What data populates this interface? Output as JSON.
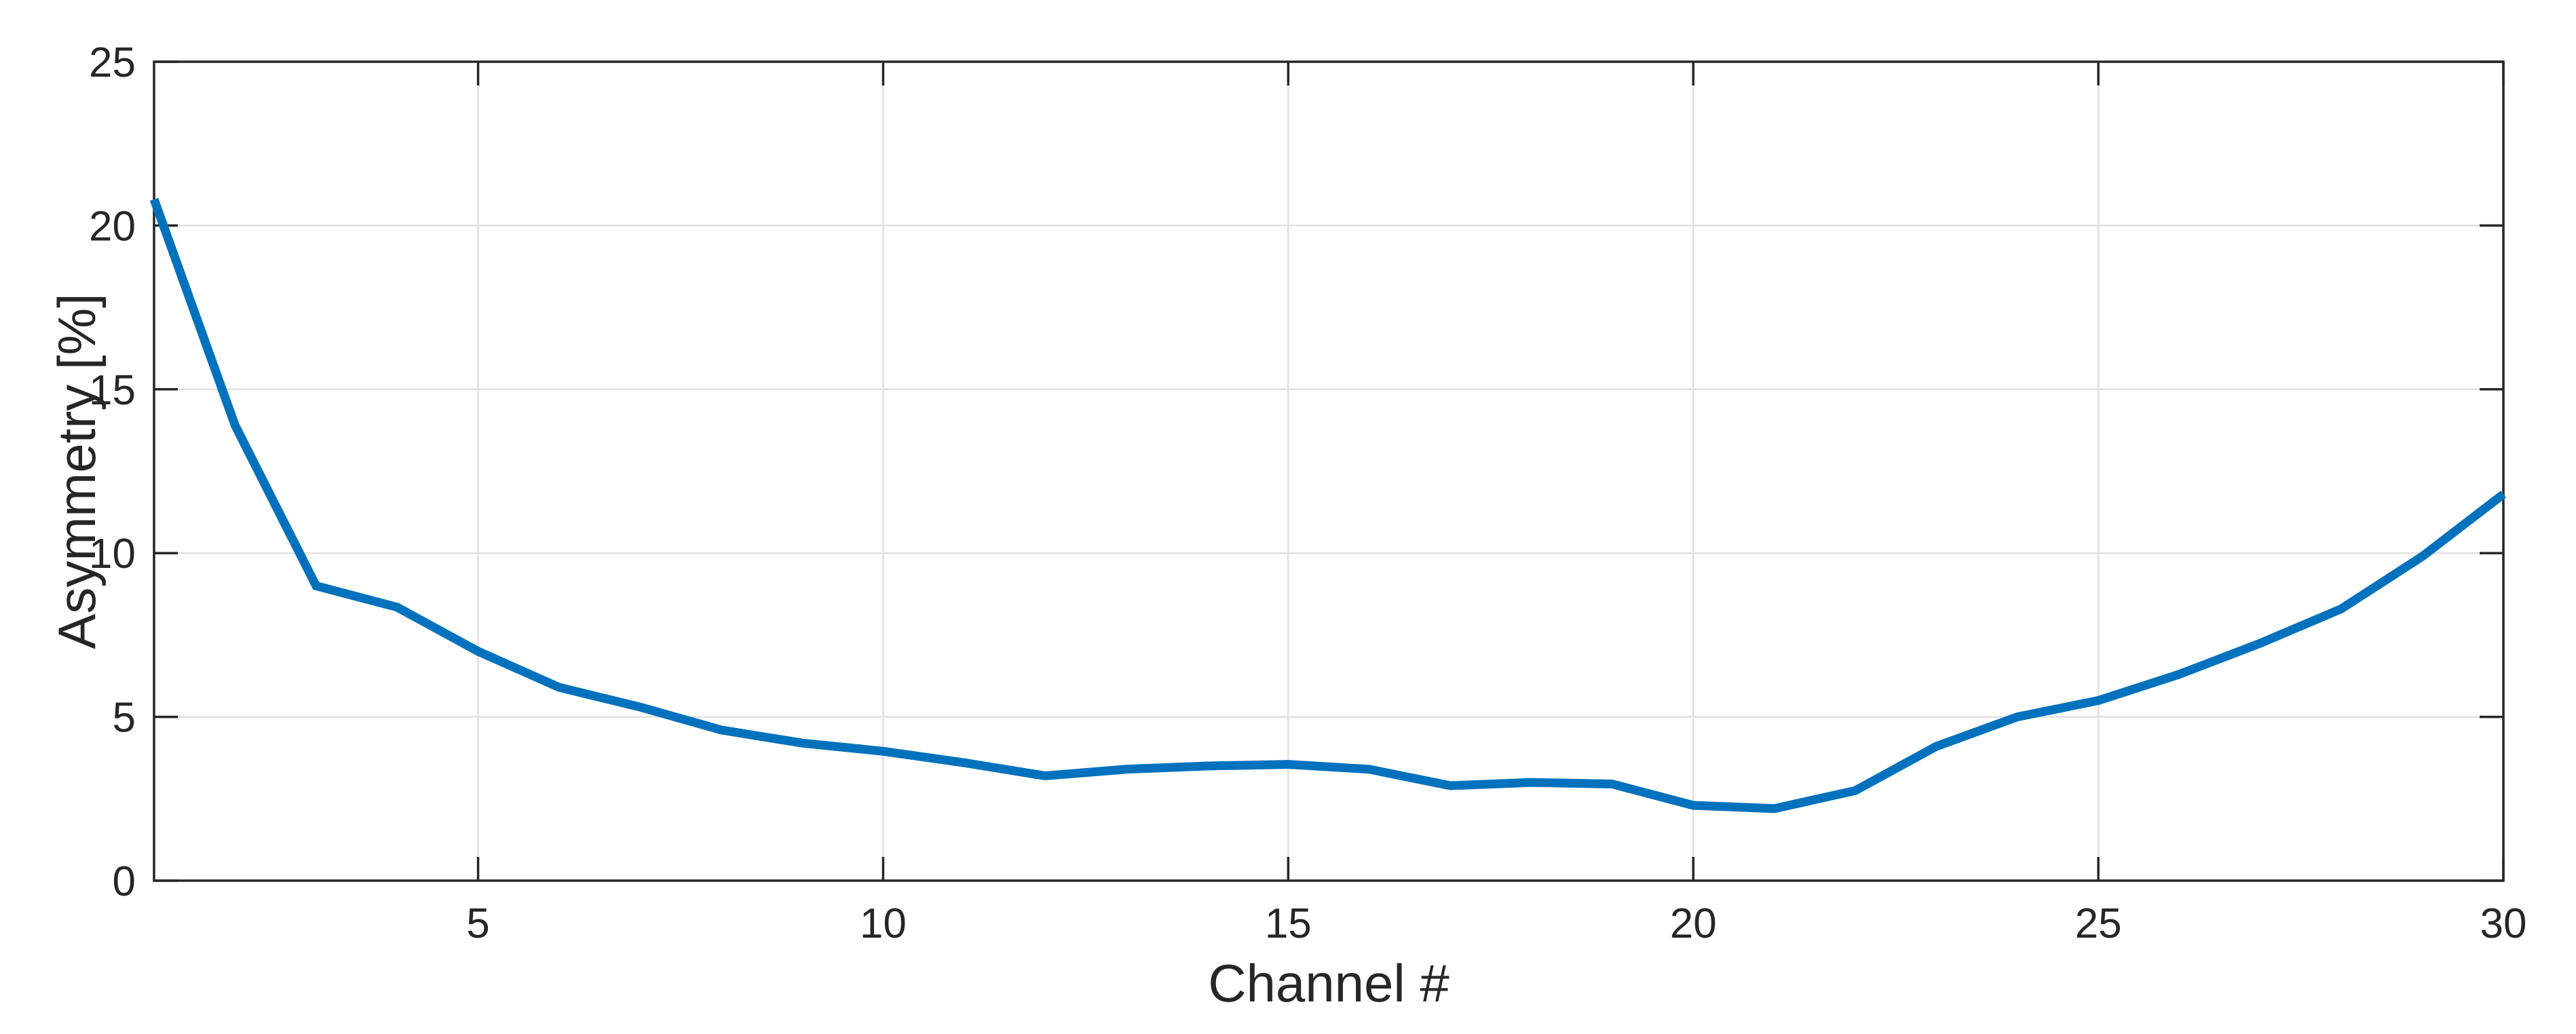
{
  "figure": {
    "background": "#ffffff"
  },
  "chart_data": {
    "type": "line",
    "title": "",
    "xlabel": "Channel #",
    "ylabel": "Asymmetry [%]",
    "x": [
      1,
      2,
      3,
      4,
      5,
      6,
      7,
      8,
      9,
      10,
      11,
      12,
      13,
      14,
      15,
      16,
      17,
      18,
      19,
      20,
      21,
      22,
      23,
      24,
      25,
      26,
      27,
      28,
      29,
      30
    ],
    "series": [
      {
        "name": "asymmetry",
        "color": "#0072bd",
        "values": [
          20.8,
          13.9,
          9.0,
          8.35,
          7.0,
          5.9,
          5.3,
          4.6,
          4.2,
          3.95,
          3.6,
          3.2,
          3.4,
          3.5,
          3.55,
          3.4,
          2.9,
          3.0,
          2.95,
          2.3,
          2.2,
          2.75,
          4.1,
          5.0,
          5.5,
          6.3,
          7.25,
          8.3,
          9.9,
          11.8
        ]
      }
    ],
    "xlim": [
      1,
      30
    ],
    "ylim": [
      0,
      25
    ],
    "xticks": [
      5,
      10,
      15,
      20,
      25,
      30
    ],
    "yticks": [
      0,
      5,
      10,
      15,
      20,
      25
    ],
    "grid": true,
    "legend": "none",
    "axis_color": "#262626",
    "grid_color": "#e0e0e0"
  }
}
